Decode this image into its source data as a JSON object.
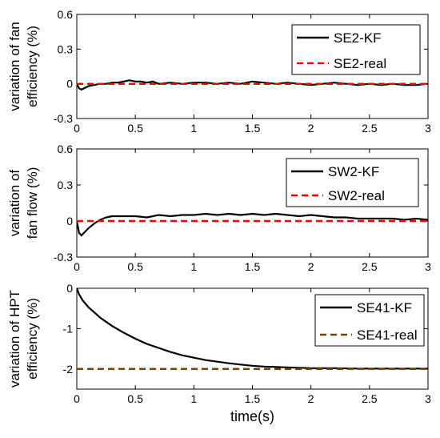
{
  "chart_data": [
    {
      "type": "line",
      "ylabel_lines": [
        "variation of fan",
        "efficiency (%)"
      ],
      "xlabel": "",
      "xlim": [
        0,
        3
      ],
      "ylim": [
        -0.3,
        0.6
      ],
      "xticks": [
        "0",
        "0.5",
        "1",
        "1.5",
        "2",
        "2.5",
        "3"
      ],
      "yticks": [
        "-0.3",
        "0",
        "0.3",
        "0.6"
      ],
      "legend_position": "top-right",
      "series": [
        {
          "name": "SE2-KF",
          "color": "#000000",
          "style": "solid",
          "x": [
            0,
            0.02,
            0.04,
            0.06,
            0.1,
            0.15,
            0.2,
            0.25,
            0.3,
            0.35,
            0.4,
            0.45,
            0.5,
            0.55,
            0.6,
            0.65,
            0.7,
            0.8,
            0.9,
            1.0,
            1.1,
            1.2,
            1.3,
            1.4,
            1.5,
            1.6,
            1.7,
            1.8,
            1.9,
            2.0,
            2.1,
            2.2,
            2.3,
            2.4,
            2.5,
            2.6,
            2.7,
            2.8,
            2.9,
            3.0
          ],
          "y": [
            0,
            -0.04,
            -0.05,
            -0.04,
            -0.02,
            -0.01,
            0.0,
            0.0,
            0.01,
            0.01,
            0.02,
            0.03,
            0.02,
            0.02,
            0.01,
            0.02,
            0.0,
            0.01,
            0.0,
            0.01,
            0.01,
            0.0,
            0.01,
            0.0,
            0.02,
            0.01,
            0.0,
            0.01,
            0.0,
            -0.01,
            0.0,
            0.01,
            0.0,
            -0.01,
            0.0,
            -0.01,
            0.0,
            -0.01,
            -0.01,
            0.0
          ]
        },
        {
          "name": "SE2-real",
          "color": "#ff0000",
          "style": "dashed",
          "x": [
            0,
            3
          ],
          "y": [
            0,
            0
          ]
        }
      ]
    },
    {
      "type": "line",
      "ylabel_lines": [
        "variation of",
        "fan flow (%)"
      ],
      "xlabel": "",
      "xlim": [
        0,
        3
      ],
      "ylim": [
        -0.3,
        0.6
      ],
      "xticks": [
        "0",
        "0.5",
        "1",
        "1.5",
        "2",
        "2.5",
        "3"
      ],
      "yticks": [
        "-0.3",
        "0",
        "0.3",
        "0.6"
      ],
      "legend_position": "top-right",
      "series": [
        {
          "name": "SW2-KF",
          "color": "#000000",
          "style": "solid",
          "x": [
            0,
            0.02,
            0.04,
            0.06,
            0.1,
            0.15,
            0.2,
            0.25,
            0.3,
            0.4,
            0.5,
            0.6,
            0.7,
            0.8,
            0.9,
            1.0,
            1.1,
            1.2,
            1.3,
            1.4,
            1.5,
            1.6,
            1.7,
            1.8,
            1.9,
            2.0,
            2.1,
            2.2,
            2.3,
            2.4,
            2.5,
            2.6,
            2.7,
            2.8,
            2.9,
            3.0
          ],
          "y": [
            0,
            -0.1,
            -0.12,
            -0.1,
            -0.06,
            -0.02,
            0.01,
            0.03,
            0.04,
            0.04,
            0.04,
            0.03,
            0.05,
            0.04,
            0.05,
            0.05,
            0.06,
            0.05,
            0.06,
            0.05,
            0.06,
            0.05,
            0.06,
            0.05,
            0.04,
            0.05,
            0.04,
            0.03,
            0.03,
            0.02,
            0.02,
            0.02,
            0.02,
            0.01,
            0.02,
            0.01
          ]
        },
        {
          "name": "SW2-real",
          "color": "#ff0000",
          "style": "dashed",
          "x": [
            0,
            3
          ],
          "y": [
            0,
            0
          ]
        }
      ]
    },
    {
      "type": "line",
      "ylabel_lines": [
        "variation of HPT",
        "efficiency (%)"
      ],
      "xlabel": "time(s)",
      "xlim": [
        0,
        3
      ],
      "ylim": [
        -2.5,
        0
      ],
      "xticks": [
        "0",
        "0.5",
        "1",
        "1.5",
        "2",
        "2.5",
        "3"
      ],
      "yticks": [
        "-2",
        "-1",
        "0"
      ],
      "legend_position": "top-right",
      "series": [
        {
          "name": "SE41-KF",
          "color": "#000000",
          "style": "solid",
          "x": [
            0,
            0.02,
            0.05,
            0.1,
            0.15,
            0.2,
            0.3,
            0.4,
            0.5,
            0.6,
            0.7,
            0.8,
            0.9,
            1.0,
            1.1,
            1.2,
            1.3,
            1.4,
            1.5,
            1.6,
            1.7,
            1.8,
            1.9,
            2.0,
            2.2,
            2.4,
            2.6,
            2.8,
            3.0
          ],
          "y": [
            0,
            -0.15,
            -0.3,
            -0.47,
            -0.6,
            -0.73,
            -0.93,
            -1.1,
            -1.25,
            -1.38,
            -1.48,
            -1.58,
            -1.66,
            -1.72,
            -1.78,
            -1.82,
            -1.86,
            -1.89,
            -1.92,
            -1.94,
            -1.95,
            -1.96,
            -1.97,
            -1.98,
            -1.98,
            -1.99,
            -1.99,
            -1.99,
            -1.99
          ]
        },
        {
          "name": "SE41-real",
          "color": "#7f3f00",
          "style": "dashed",
          "x": [
            0,
            3
          ],
          "y": [
            -2,
            -2
          ]
        }
      ]
    }
  ]
}
